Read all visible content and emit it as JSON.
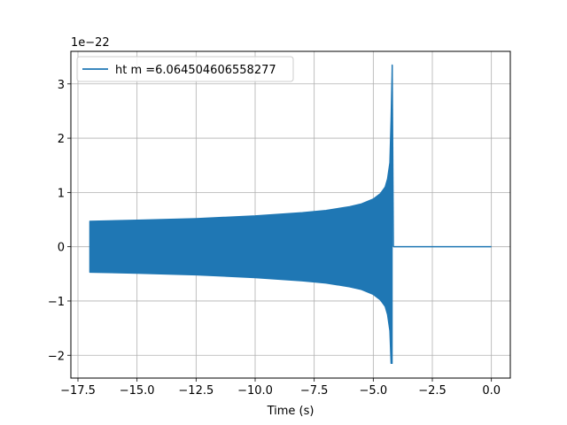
{
  "chart_data": {
    "type": "line",
    "xlabel": "Time (s)",
    "ylabel": "",
    "offset_text": "1e−22",
    "xlim": [
      -17.8,
      0.8
    ],
    "ylim": [
      -2.42,
      3.6
    ],
    "grid": true,
    "legend_position": "top-left",
    "x_ticks": [
      -17.5,
      -15.0,
      -12.5,
      -10.0,
      -7.5,
      -5.0,
      -2.5,
      0.0
    ],
    "x_tick_labels": [
      "−17.5",
      "−15.0",
      "−12.5",
      "−10.0",
      "−7.5",
      "−5.0",
      "−2.5",
      "0.0"
    ],
    "y_ticks": [
      -2,
      -1,
      0,
      1,
      2,
      3
    ],
    "y_tick_labels": [
      "−2",
      "−1",
      "0",
      "1",
      "2",
      "3"
    ],
    "series": [
      {
        "name": "ht m =6.064504606558277",
        "color": "#1f77b4",
        "envelope": {
          "x": [
            -17.0,
            -15.0,
            -12.5,
            -10.0,
            -8.0,
            -7.0,
            -6.0,
            -5.5,
            -5.0,
            -4.7,
            -4.5,
            -4.4,
            -4.3,
            -4.25,
            -4.2
          ],
          "upper": [
            0.47,
            0.49,
            0.52,
            0.57,
            0.63,
            0.67,
            0.74,
            0.79,
            0.88,
            0.98,
            1.1,
            1.25,
            1.55,
            2.35,
            3.35
          ],
          "lower": [
            -0.47,
            -0.49,
            -0.52,
            -0.57,
            -0.63,
            -0.67,
            -0.74,
            -0.79,
            -0.88,
            -0.98,
            -1.1,
            -1.25,
            -1.55,
            -2.15,
            -2.15
          ]
        },
        "ringdown": {
          "x": [
            -4.2,
            -4.15
          ],
          "y": [
            3.35,
            0.0
          ]
        },
        "tail": {
          "x": [
            -4.15,
            0.0
          ],
          "y": [
            0.0,
            0.0
          ]
        }
      }
    ]
  }
}
